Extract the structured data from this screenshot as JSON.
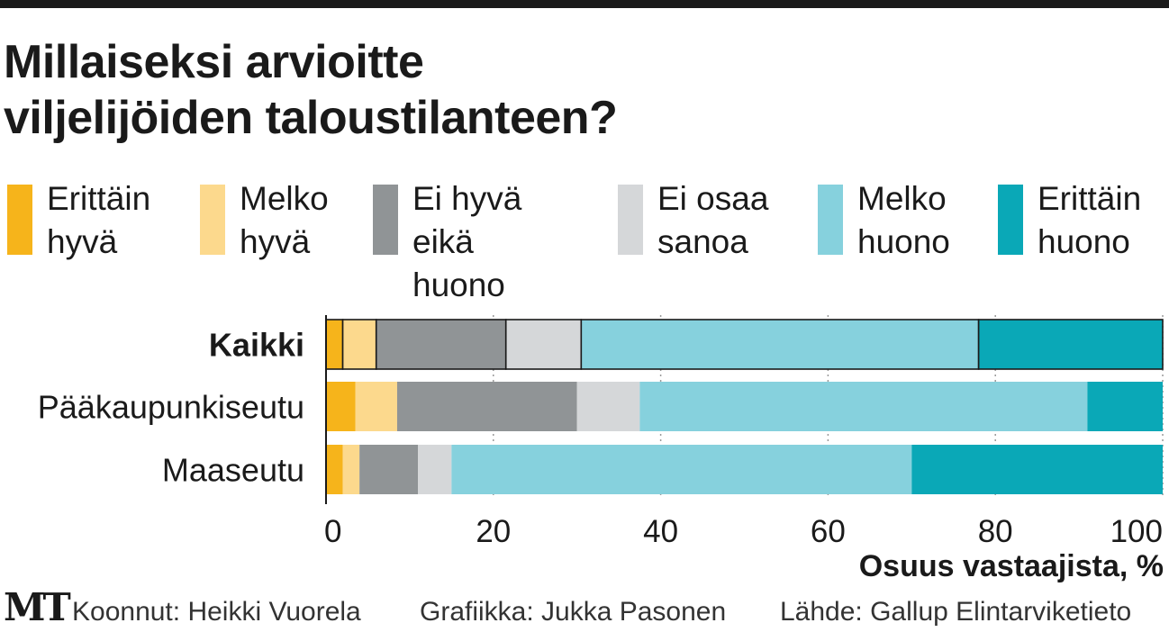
{
  "title": {
    "line1": "Millaiseksi arvioitte",
    "line2": "viljelijöiden taloustilanteen?"
  },
  "legend": [
    {
      "label": "Erittäin\nhyvä",
      "color": "#F6B41B"
    },
    {
      "label": "Melko\nhyvä",
      "color": "#FCD98D"
    },
    {
      "label": "Ei hyvä\neikä\nhuono",
      "color": "#909496"
    },
    {
      "label": "Ei osaa\nsanoa",
      "color": "#D5D7D9"
    },
    {
      "label": "Melko\nhuono",
      "color": "#86D1DD"
    },
    {
      "label": "Erittäin\nhuono",
      "color": "#0AA8B7"
    }
  ],
  "chart_data": {
    "type": "bar",
    "orientation": "horizontal",
    "stacked": true,
    "categories": [
      "Kaikki",
      "Pääkaupunkiseutu",
      "Maaseutu"
    ],
    "bold_category": "Kaikki",
    "series": [
      {
        "name": "Erittäin hyvä",
        "color": "#F6B41B",
        "values": [
          2,
          3.5,
          2
        ]
      },
      {
        "name": "Melko hyvä",
        "color": "#FCD98D",
        "values": [
          4,
          5,
          2
        ]
      },
      {
        "name": "Ei hyvä eikä huono",
        "color": "#909496",
        "values": [
          15.5,
          21.5,
          7
        ]
      },
      {
        "name": "Ei osaa sanoa",
        "color": "#D5D7D9",
        "values": [
          9,
          7.5,
          4
        ]
      },
      {
        "name": "Melko huono",
        "color": "#86D1DD",
        "values": [
          47.5,
          53.5,
          55
        ]
      },
      {
        "name": "Erittäin huono",
        "color": "#0AA8B7",
        "values": [
          22,
          9,
          30
        ]
      }
    ],
    "xlim": [
      0,
      100
    ],
    "xticks": [
      0,
      20,
      40,
      60,
      80,
      100
    ],
    "xlabel": "Osuus vastaajista, %",
    "grid": "vertical-dotted"
  },
  "footer": {
    "logo": "MT",
    "compiled": "Koonnut: Heikki Vuorela",
    "graphics": "Grafiikka: Jukka Pasonen",
    "source": "Lähde: Gallup Elintarviketieto"
  }
}
